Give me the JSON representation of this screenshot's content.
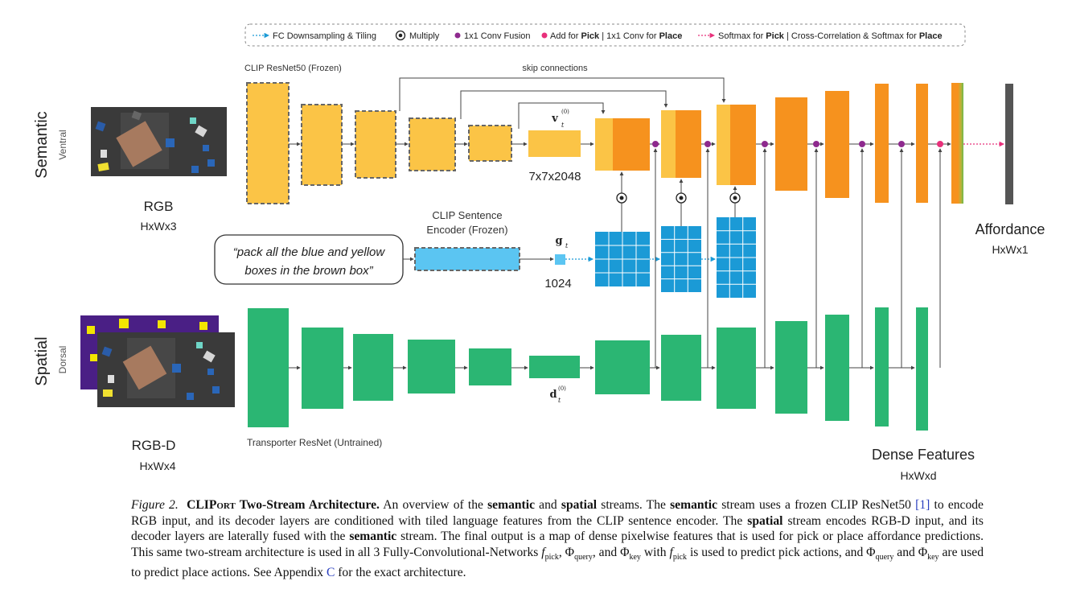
{
  "legend": {
    "fc": "FC Downsampling & Tiling",
    "multiply": "Multiply",
    "conv_fusion": "1x1 Conv Fusion",
    "add_pre": "Add for ",
    "add_pick": "Pick",
    "add_mid": " | 1x1 Conv for ",
    "add_place": "Place",
    "softmax_pre": "Softmax for ",
    "softmax_pick": "Pick",
    "softmax_mid": " | Cross-Correlation & Softmax for ",
    "softmax_place": "Place"
  },
  "labels": {
    "clip_resnet": "CLIP ResNet50 (Frozen)",
    "skip_connections": "skip connections",
    "semantic": "Semantic",
    "ventral": "Ventral",
    "rgb": "RGB",
    "rgb_dim": "HxWx3",
    "vt": "v",
    "vt_sub": "t",
    "vt_sup": "(0)",
    "vt_dim": "7x7x2048",
    "sentence_encoder_1": "CLIP Sentence",
    "sentence_encoder_2": "Encoder (Frozen)",
    "gt": "g",
    "gt_sub": "t",
    "gt_dim": "1024",
    "instruction_1": "“pack all the blue and yellow",
    "instruction_2": "boxes in the brown box”",
    "spatial": "Spatial",
    "dorsal": "Dorsal",
    "rgbd": "RGB-D",
    "rgbd_dim": "HxWx4",
    "dt": "d",
    "dt_sub": "t",
    "dt_sup": "(0)",
    "transporter": "Transporter ResNet (Untrained)",
    "affordance": "Affordance",
    "affordance_dim": "HxWx1",
    "dense_features": "Dense Features",
    "dense_dim": "HxWxd"
  },
  "caption": {
    "fig_label": "Figure 2.",
    "title_a": "CLIP",
    "title_b": "ort",
    "title_c": " Two-Stream Architecture.",
    "s1": " An overview of the ",
    "b1": "semantic",
    "s2": " and ",
    "b2": "spatial",
    "s3": " streams. The ",
    "b3": "semantic",
    "s4": " stream uses a frozen CLIP ResNet50 ",
    "cite": "[1]",
    "s5": " to encode RGB input, and its decoder layers are conditioned with tiled language features from the CLIP sentence encoder. The ",
    "b4": "spatial",
    "s6": " stream encodes RGB-D input, and its decoder layers are laterally fused with the ",
    "b5": "semantic",
    "s7": " stream. The final output is a map of dense pixelwise features that is used for pick or place affordance predictions. This same two-stream architecture is used in all 3 Fully-Convolutional-Networks ",
    "f": "f",
    "pick": "pick",
    "s8": ", ",
    "phi1": "Φ",
    "query": "query",
    "s9": ", and ",
    "phi2": "Φ",
    "key": "key",
    "s10": " with ",
    "f2": "f",
    "pick2": "pick",
    "s11": " is used to predict pick actions, and ",
    "phi3": "Φ",
    "query2": "query",
    "s12": " and ",
    "phi4": "Φ",
    "key2": "key",
    "s13": " are used to predict place actions. See Appendix ",
    "appendix": "C",
    "s14": " for the exact architecture."
  },
  "colors": {
    "orange_light": "#fbc446",
    "orange": "#f6921e",
    "green": "#2bb673",
    "blue": "#1b9ad6",
    "blue_light": "#5bc5f2",
    "purple": "#8e2a8e",
    "pink": "#e8307b",
    "gray_bar": "#555555"
  }
}
